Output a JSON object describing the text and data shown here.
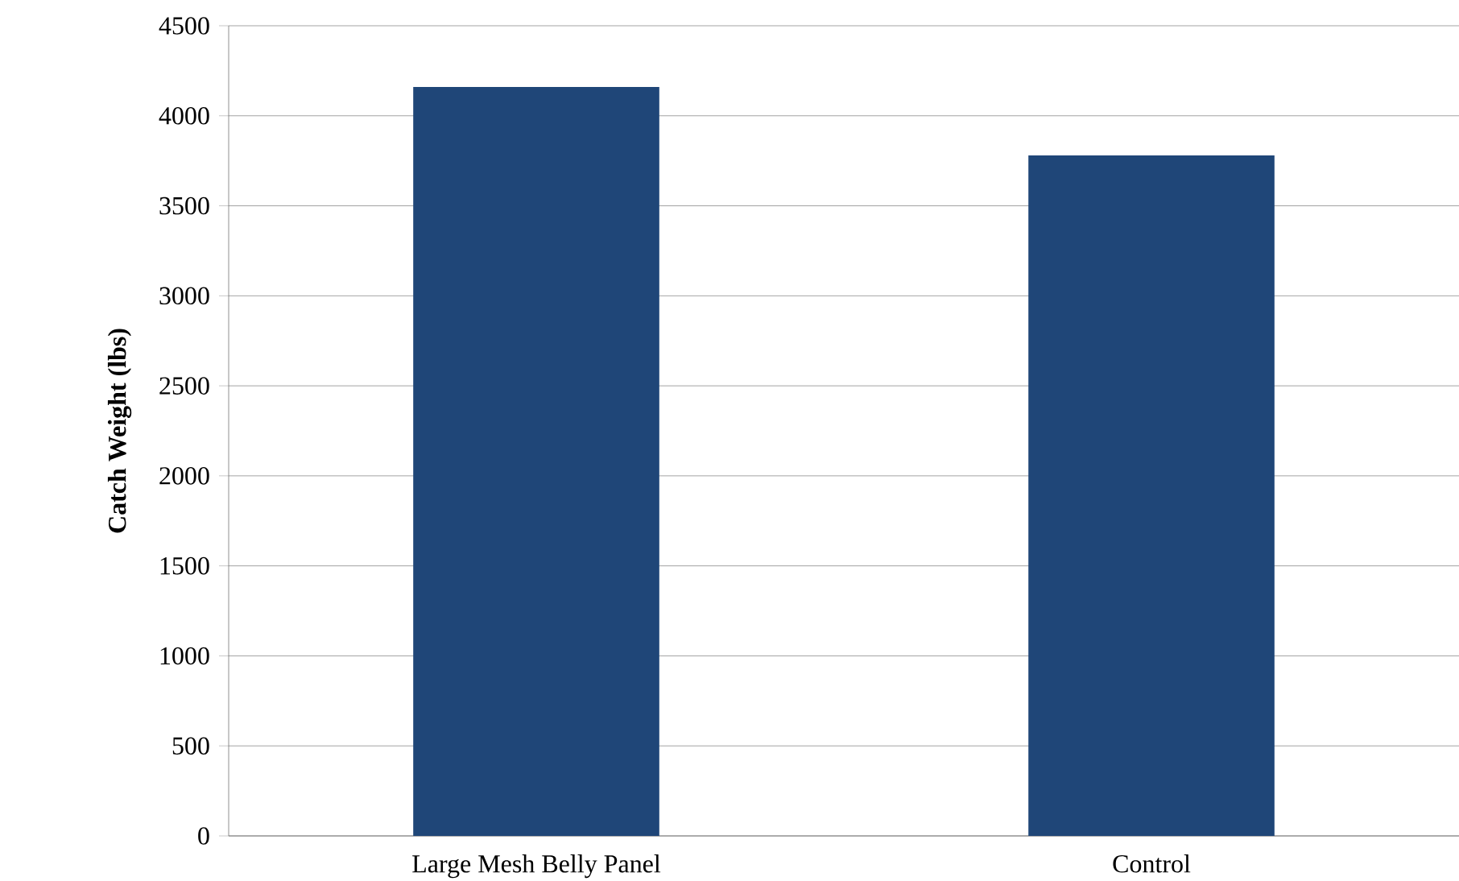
{
  "chart_data": {
    "type": "bar",
    "ylabel": "Catch Weight (lbs)",
    "categories": [
      "Large Mesh Belly Panel",
      "Control"
    ],
    "values": [
      4160,
      3780
    ],
    "color": "#1f4678",
    "ylim": [
      0,
      4500
    ],
    "yticks": [
      0,
      500,
      1000,
      1500,
      2000,
      2500,
      3000,
      3500,
      4000,
      4500
    ],
    "grid": "y"
  }
}
